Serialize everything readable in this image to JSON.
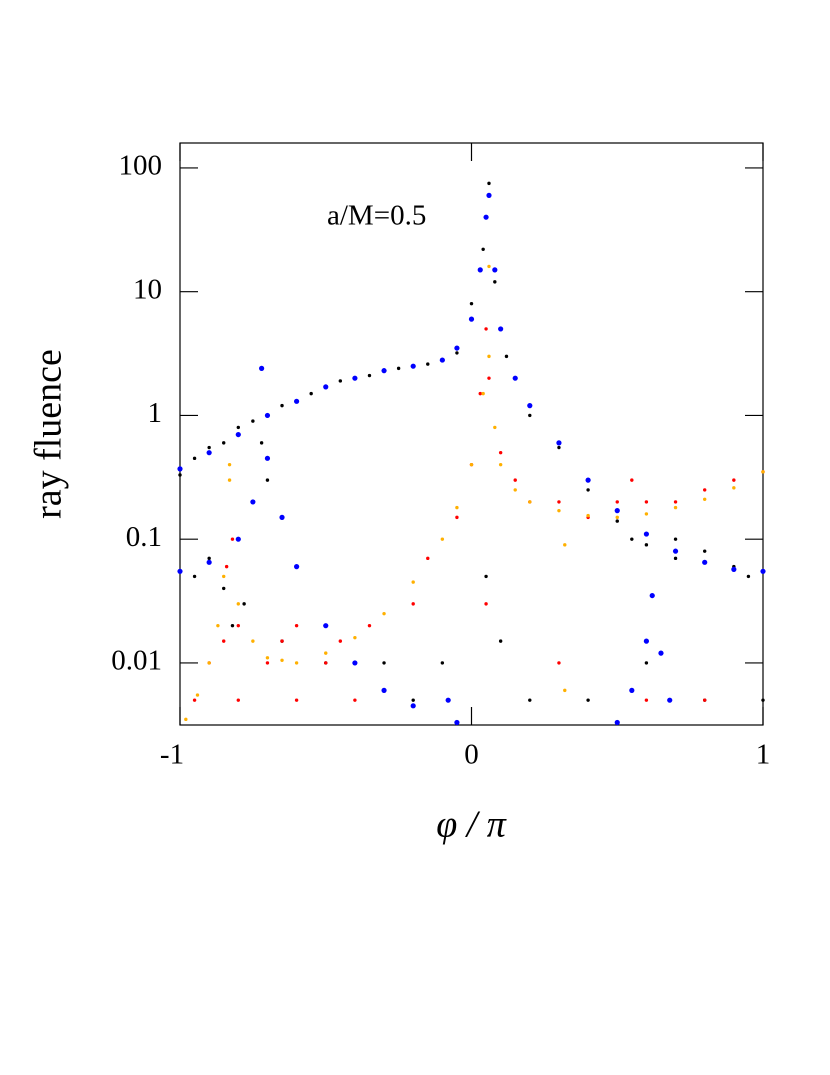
{
  "chart_data": {
    "type": "scatter",
    "annotation": "a/M=0.5",
    "x_label": "φ / π",
    "y_label": "ray fluence",
    "xlim": [
      -1,
      1
    ],
    "xticks": [
      -1,
      0,
      1
    ],
    "ylim": [
      0.00315,
      159
    ],
    "yticks": [
      0.01,
      0.1,
      1,
      10,
      100
    ],
    "y_scale": "log",
    "series": [
      {
        "color": "#000000",
        "x": [
          -1,
          -0.95,
          -0.9,
          -0.85,
          -0.8,
          -0.75,
          -0.65,
          -0.55,
          -0.45,
          -0.35,
          -0.25,
          -0.15,
          -0.05,
          0.0,
          0.04,
          0.06,
          0.08,
          0.12,
          0.2,
          0.3,
          0.4,
          0.5,
          0.55,
          0.6,
          0.7,
          0.8,
          0.9,
          0.95,
          -0.95,
          -0.9,
          -0.85,
          -0.8,
          -0.75,
          -0.72,
          -0.7,
          -0.82,
          -0.78,
          -0.65,
          -0.5,
          -0.3,
          -0.1,
          0.1,
          0.2,
          0.4,
          0.6,
          0.8,
          1,
          0.05,
          -0.2,
          0.7
        ],
        "values": [
          0.33,
          0.45,
          0.55,
          0.6,
          0.8,
          0.9,
          1.2,
          1.5,
          1.9,
          2.1,
          2.4,
          2.6,
          3.2,
          8,
          22,
          75,
          12,
          3,
          1.0,
          0.55,
          0.25,
          0.14,
          0.1,
          0.09,
          0.07,
          0.08,
          0.06,
          0.05,
          0.05,
          0.07,
          0.04,
          0.1,
          0.2,
          0.6,
          0.3,
          0.02,
          0.03,
          0.015,
          0.01,
          0.01,
          0.01,
          0.015,
          0.005,
          0.005,
          0.01,
          0.005,
          0.005,
          0.05,
          0.005,
          0.1
        ]
      },
      {
        "color": "#ff0000",
        "x": [
          -0.95,
          -0.8,
          -0.6,
          -0.4,
          -0.9,
          -0.7,
          -0.5,
          -0.85,
          -0.65,
          -0.45,
          -0.8,
          -0.6,
          -0.35,
          -0.84,
          -0.82,
          -0.2,
          -0.15,
          -0.05,
          0,
          0.03,
          0.05,
          0.06,
          0.1,
          0.15,
          0.2,
          0.3,
          0.4,
          0.5,
          0.6,
          0.7,
          0.8,
          0.9,
          1,
          0.55,
          0.3,
          0.6,
          0.8,
          0.05
        ],
        "values": [
          0.005,
          0.005,
          0.005,
          0.005,
          0.01,
          0.01,
          0.01,
          0.015,
          0.015,
          0.015,
          0.02,
          0.02,
          0.02,
          0.06,
          0.1,
          0.03,
          0.07,
          0.15,
          0.4,
          1.5,
          5,
          2,
          0.5,
          0.3,
          0.2,
          0.2,
          0.15,
          0.2,
          0.2,
          0.2,
          0.25,
          0.3,
          0.35,
          0.3,
          0.01,
          0.005,
          0.005,
          0.03
        ]
      },
      {
        "color": "#ffb000",
        "x": [
          -0.98,
          -0.94,
          -0.9,
          -0.87,
          -0.85,
          -0.83,
          -0.83,
          -0.8,
          -0.75,
          -0.7,
          -0.65,
          -0.6,
          -0.5,
          -0.4,
          -0.3,
          -0.2,
          -0.1,
          -0.05,
          0,
          0.04,
          0.06,
          0.06,
          0.08,
          0.1,
          0.15,
          0.2,
          0.3,
          0.4,
          0.5,
          0.6,
          0.7,
          0.8,
          0.9,
          1,
          0.32,
          0.32
        ],
        "values": [
          0.0035,
          0.0055,
          0.01,
          0.02,
          0.05,
          0.3,
          0.4,
          0.03,
          0.015,
          0.011,
          0.0105,
          0.01,
          0.012,
          0.016,
          0.025,
          0.045,
          0.1,
          0.18,
          0.4,
          1.5,
          3,
          16,
          0.8,
          0.4,
          0.25,
          0.2,
          0.17,
          0.155,
          0.15,
          0.16,
          0.18,
          0.21,
          0.26,
          0.35,
          0.09,
          0.006
        ]
      },
      {
        "color": "#0000ff",
        "x": [
          -1,
          -0.9,
          -0.8,
          -0.7,
          -0.6,
          -0.5,
          -0.4,
          -0.3,
          -0.2,
          -0.1,
          -0.05,
          0,
          0.03,
          0.05,
          0.06,
          0.08,
          0.1,
          0.15,
          0.2,
          0.3,
          0.4,
          0.5,
          0.6,
          0.7,
          0.8,
          0.9,
          1,
          -1,
          -0.9,
          -0.8,
          -0.75,
          -0.7,
          -0.65,
          -0.6,
          -0.5,
          -0.4,
          -0.3,
          -0.2,
          -0.05,
          -0.72,
          -0.08,
          0.5,
          0.55,
          0.6,
          0.62,
          0.65,
          0.68
        ],
        "values": [
          0.37,
          0.5,
          0.7,
          1.0,
          1.3,
          1.7,
          2.0,
          2.3,
          2.5,
          2.8,
          3.5,
          6,
          15,
          40,
          60,
          15,
          5,
          2,
          1.2,
          0.6,
          0.3,
          0.17,
          0.11,
          0.08,
          0.065,
          0.057,
          0.055,
          0.055,
          0.065,
          0.1,
          0.2,
          0.45,
          0.15,
          0.06,
          0.02,
          0.01,
          0.006,
          0.0045,
          0.0033,
          2.4,
          0.005,
          0.0033,
          0.006,
          0.015,
          0.035,
          0.012,
          0.005
        ]
      }
    ]
  }
}
